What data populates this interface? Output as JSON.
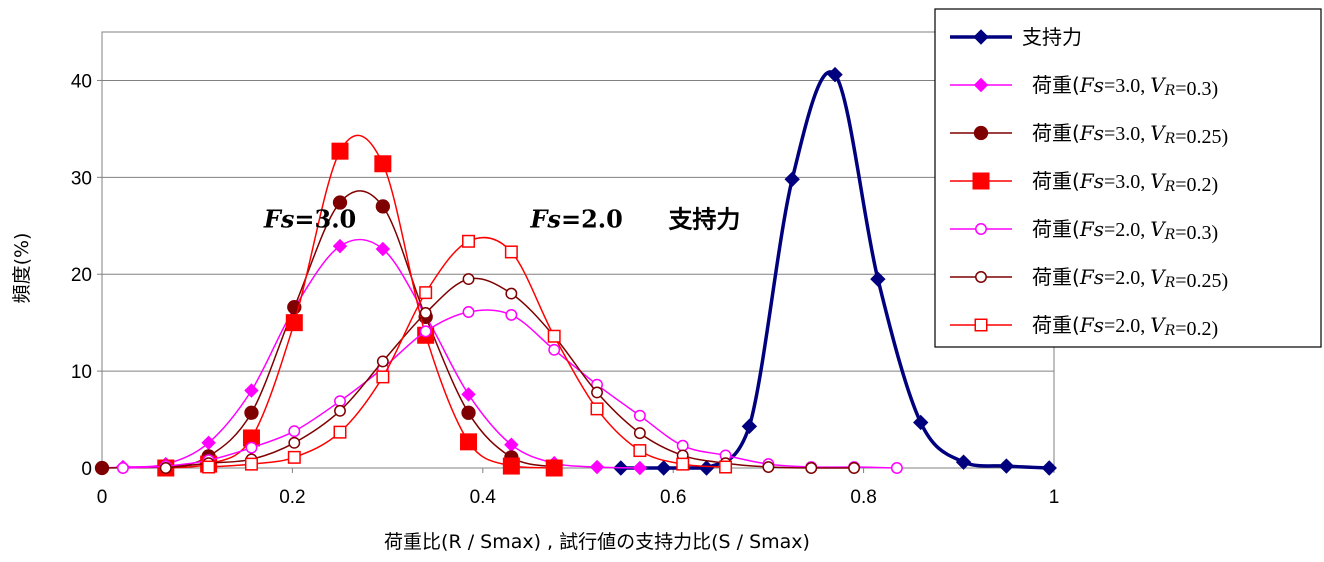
{
  "chart_data": {
    "type": "line",
    "xlabel": "荷重比(R / Smax) , 試行値の支持力比(S / Smax)",
    "ylabel": "頻度(%)",
    "xlim": [
      0,
      1
    ],
    "ylim": [
      0,
      45
    ],
    "x_ticks": [
      "0",
      "0.2",
      "0.4",
      "0.6",
      "0.8",
      "1"
    ],
    "y_ticks": [
      "0",
      "10",
      "20",
      "30",
      "40"
    ],
    "grid": "horizontal",
    "legend_position": "top-right",
    "annotations": [
      {
        "label_pre": "Fs",
        "label_post": "=3.0",
        "x": 0.17,
        "y": 24.8
      },
      {
        "label_pre": "Fs",
        "label_post": "=2.0",
        "x": 0.45,
        "y": 24.8
      },
      {
        "label_pre": "",
        "label_post": "支持力",
        "x": 0.595,
        "y": 24.8
      }
    ],
    "series": [
      {
        "name": "支持力",
        "legend": {
          "pre": "支持力",
          "fs": "",
          "mid": "",
          "vr": "",
          "post": ""
        },
        "color": "#00007f",
        "marker": "diamond",
        "fill": true,
        "stroke_width": 3.5,
        "marker_size": 14,
        "legend_bold_line": true,
        "points": [
          [
            0.545,
            0
          ],
          [
            0.59,
            0
          ],
          [
            0.635,
            0
          ],
          [
            0.68,
            4.3
          ],
          [
            0.725,
            29.8
          ],
          [
            0.77,
            40.6
          ],
          [
            0.815,
            19.5
          ],
          [
            0.86,
            4.7
          ],
          [
            0.905,
            0.6
          ],
          [
            0.95,
            0.2
          ],
          [
            0.995,
            0
          ]
        ]
      },
      {
        "name": "荷重(Fs=3.0, VR=0.3)",
        "legend": {
          "pre": "荷重(",
          "fs": "Fs",
          "mid": "=3.0, ",
          "vr": "VR",
          "post": "=0.3)"
        },
        "color": "#ff00ff",
        "marker": "diamond",
        "fill": true,
        "stroke_width": 1.5,
        "marker_size": 13,
        "points": [
          [
            0,
            0
          ],
          [
            0.022,
            0.1
          ],
          [
            0.067,
            0.4
          ],
          [
            0.112,
            2.6
          ],
          [
            0.157,
            8.0
          ],
          [
            0.202,
            16.5
          ],
          [
            0.25,
            22.9
          ],
          [
            0.295,
            22.6
          ],
          [
            0.34,
            15.7
          ],
          [
            0.385,
            7.6
          ],
          [
            0.43,
            2.4
          ],
          [
            0.475,
            0.5
          ],
          [
            0.52,
            0.1
          ],
          [
            0.565,
            0
          ]
        ]
      },
      {
        "name": "荷重(Fs=3.0, VR=0.25)",
        "legend": {
          "pre": "荷重(",
          "fs": "Fs",
          "mid": "=3.0, ",
          "vr": "VR",
          "post": "=0.25)"
        },
        "color": "#7f0000",
        "marker": "circle",
        "fill": true,
        "stroke_width": 1.5,
        "marker_size": 14,
        "points": [
          [
            0,
            0
          ],
          [
            0.067,
            0.1
          ],
          [
            0.112,
            1.2
          ],
          [
            0.157,
            5.7
          ],
          [
            0.202,
            16.6
          ],
          [
            0.25,
            27.4
          ],
          [
            0.295,
            27.0
          ],
          [
            0.34,
            15.6
          ],
          [
            0.385,
            5.7
          ],
          [
            0.43,
            1.1
          ],
          [
            0.475,
            0.1
          ]
        ]
      },
      {
        "name": "荷重(Fs=3.0, VR=0.2)",
        "legend": {
          "pre": "荷重(",
          "fs": "Fs",
          "mid": "=3.0, ",
          "vr": "VR",
          "post": "=0.2)"
        },
        "color": "#ff0000",
        "marker": "square",
        "fill": true,
        "stroke_width": 1.5,
        "marker_size": 16,
        "points": [
          [
            0.067,
            0
          ],
          [
            0.112,
            0.4
          ],
          [
            0.157,
            3.1
          ],
          [
            0.202,
            15.0
          ],
          [
            0.25,
            32.7
          ],
          [
            0.295,
            31.4
          ],
          [
            0.34,
            13.7
          ],
          [
            0.385,
            2.7
          ],
          [
            0.43,
            0.2
          ],
          [
            0.475,
            0
          ]
        ]
      },
      {
        "name": "荷重(Fs=2.0, VR=0.3)",
        "legend": {
          "pre": "荷重(",
          "fs": "Fs",
          "mid": "=2.0, ",
          "vr": "VR",
          "post": "=0.3)"
        },
        "color": "#ff00ff",
        "marker": "circle",
        "fill": false,
        "stroke_width": 1.5,
        "marker_size": 13,
        "points": [
          [
            0.022,
            0
          ],
          [
            0.067,
            0.2
          ],
          [
            0.112,
            0.8
          ],
          [
            0.157,
            2.1
          ],
          [
            0.202,
            3.8
          ],
          [
            0.25,
            6.9
          ],
          [
            0.295,
            10.3
          ],
          [
            0.34,
            14.1
          ],
          [
            0.385,
            16.1
          ],
          [
            0.43,
            15.8
          ],
          [
            0.475,
            12.2
          ],
          [
            0.52,
            8.6
          ],
          [
            0.565,
            5.4
          ],
          [
            0.61,
            2.3
          ],
          [
            0.655,
            1.3
          ],
          [
            0.7,
            0.4
          ],
          [
            0.745,
            0.1
          ],
          [
            0.79,
            0.1
          ],
          [
            0.835,
            0
          ]
        ]
      },
      {
        "name": "荷重(Fs=2.0, VR=0.25)",
        "legend": {
          "pre": "荷重(",
          "fs": "Fs",
          "mid": "=2.0, ",
          "vr": "VR",
          "post": "=0.25)"
        },
        "color": "#7f0000",
        "marker": "circle",
        "fill": false,
        "stroke_width": 1.5,
        "marker_size": 13,
        "points": [
          [
            0.067,
            0
          ],
          [
            0.112,
            0.5
          ],
          [
            0.157,
            0.9
          ],
          [
            0.202,
            2.6
          ],
          [
            0.25,
            5.9
          ],
          [
            0.295,
            11.0
          ],
          [
            0.34,
            16.0
          ],
          [
            0.385,
            19.5
          ],
          [
            0.43,
            18.0
          ],
          [
            0.475,
            13.6
          ],
          [
            0.52,
            7.8
          ],
          [
            0.565,
            3.6
          ],
          [
            0.61,
            1.3
          ],
          [
            0.655,
            0.5
          ],
          [
            0.7,
            0.1
          ],
          [
            0.745,
            0
          ],
          [
            0.79,
            0
          ]
        ]
      },
      {
        "name": "荷重(Fs=2.0, VR=0.2)",
        "legend": {
          "pre": "荷重(",
          "fs": "Fs",
          "mid": "=2.0, ",
          "vr": "VR",
          "post": "=0.2)"
        },
        "color": "#ff0000",
        "marker": "square",
        "fill": false,
        "stroke_width": 1.5,
        "marker_size": 14,
        "points": [
          [
            0.112,
            0.1
          ],
          [
            0.157,
            0.4
          ],
          [
            0.202,
            1.1
          ],
          [
            0.25,
            3.7
          ],
          [
            0.295,
            9.4
          ],
          [
            0.34,
            18.1
          ],
          [
            0.385,
            23.4
          ],
          [
            0.43,
            22.3
          ],
          [
            0.475,
            13.6
          ],
          [
            0.52,
            6.1
          ],
          [
            0.565,
            1.8
          ],
          [
            0.61,
            0.4
          ],
          [
            0.655,
            0.1
          ]
        ]
      }
    ]
  }
}
